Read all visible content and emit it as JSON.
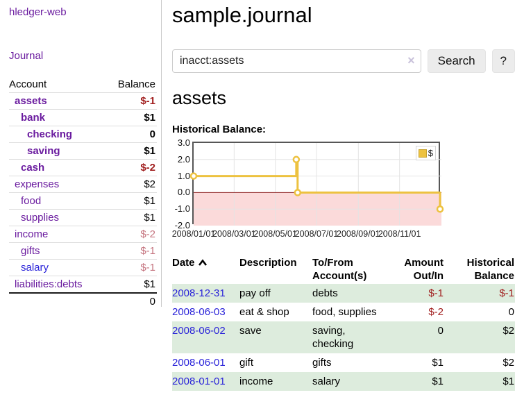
{
  "app": {
    "brand": "hledger-web",
    "title": "sample.journal"
  },
  "sidebar": {
    "journal_link": "Journal",
    "accounts": {
      "header": {
        "account": "Account",
        "balance": "Balance"
      },
      "rows": [
        {
          "name": "assets",
          "balance": "$-1",
          "depth": 1,
          "bold": true,
          "name_class": "purple",
          "balance_class": "neg"
        },
        {
          "name": "bank",
          "balance": "$1",
          "depth": 2,
          "bold": true,
          "name_class": "purple",
          "balance_class": ""
        },
        {
          "name": "checking",
          "balance": "0",
          "depth": 3,
          "bold": true,
          "name_class": "purple",
          "balance_class": ""
        },
        {
          "name": "saving",
          "balance": "$1",
          "depth": 3,
          "bold": true,
          "name_class": "purple",
          "balance_class": ""
        },
        {
          "name": "cash",
          "balance": "$-2",
          "depth": 2,
          "bold": true,
          "name_class": "purple",
          "balance_class": "neg"
        },
        {
          "name": "expenses",
          "balance": "$2",
          "depth": 1,
          "bold": false,
          "name_class": "purple",
          "balance_class": ""
        },
        {
          "name": "food",
          "balance": "$1",
          "depth": 2,
          "bold": false,
          "name_class": "purple",
          "balance_class": ""
        },
        {
          "name": "supplies",
          "balance": "$1",
          "depth": 2,
          "bold": false,
          "name_class": "purple",
          "balance_class": ""
        },
        {
          "name": "income",
          "balance": "$-2",
          "depth": 1,
          "bold": false,
          "name_class": "purple",
          "balance_class": "softneg"
        },
        {
          "name": "gifts",
          "balance": "$-1",
          "depth": 2,
          "bold": false,
          "name_class": "purple",
          "balance_class": "softneg"
        },
        {
          "name": "salary",
          "balance": "$-1",
          "depth": 2,
          "bold": false,
          "name_class": "blue",
          "balance_class": "softneg"
        },
        {
          "name": "liabilities:debts",
          "balance": "$1",
          "depth": 1,
          "bold": false,
          "name_class": "purple",
          "balance_class": ""
        }
      ],
      "total": "0"
    }
  },
  "search": {
    "value": "inacct:assets",
    "clear_icon": "×",
    "search_button": "Search",
    "help_button": "?"
  },
  "page": {
    "heading": "assets",
    "chart_title": "Historical Balance:"
  },
  "chart_data": {
    "type": "line",
    "title": "Historical Balance",
    "series": [
      {
        "name": "$",
        "color": "#edc240",
        "points": [
          {
            "date": "2008-01-01",
            "value": 1
          },
          {
            "date": "2008-06-01",
            "value": 2
          },
          {
            "date": "2008-06-03",
            "value": 0
          },
          {
            "date": "2008-12-31",
            "value": -1
          }
        ]
      }
    ],
    "x_range": [
      "2008-01-01",
      "2008-12-31"
    ],
    "x_ticks": [
      "2008/01/01",
      "2008/03/01",
      "2008/05/01",
      "2008/07/01",
      "2008/09/01",
      "2008/11/01"
    ],
    "y_ticks": [
      "3.0",
      "2.0",
      "1.0",
      "0.0",
      "-1.0",
      "-2.0"
    ],
    "ylim": [
      -2,
      3
    ],
    "legend": "$",
    "legend_position": "top-right",
    "grid": true,
    "style": {
      "negative_fill": "#fbdada",
      "zero_line": "#8b1f1f",
      "grid_line": "#e4e4e4",
      "marker_fill": "#ffffff"
    }
  },
  "register": {
    "headers": [
      {
        "label": "Date",
        "sorted": "asc"
      },
      {
        "label": "Description"
      },
      {
        "label": "To/From Account(s)"
      },
      {
        "label": "Amount Out/In",
        "align": "right"
      },
      {
        "label": "Historical Balance",
        "align": "right"
      }
    ],
    "rows": [
      {
        "date": "2008-12-31",
        "description": "pay off",
        "accounts": "debts",
        "amount": "$-1",
        "amount_class": "neg",
        "balance": "$-1",
        "balance_class": "neg"
      },
      {
        "date": "2008-06-03",
        "description": "eat & shop",
        "accounts": "food, supplies",
        "amount": "$-2",
        "amount_class": "neg",
        "balance": "0",
        "balance_class": ""
      },
      {
        "date": "2008-06-02",
        "description": "save",
        "accounts": "saving, checking",
        "amount": "0",
        "amount_class": "",
        "balance": "$2",
        "balance_class": ""
      },
      {
        "date": "2008-06-01",
        "description": "gift",
        "accounts": "gifts",
        "amount": "$1",
        "amount_class": "",
        "balance": "$2",
        "balance_class": ""
      },
      {
        "date": "2008-01-01",
        "description": "income",
        "accounts": "salary",
        "amount": "$1",
        "amount_class": "",
        "balance": "$1",
        "balance_class": ""
      }
    ]
  },
  "colors": {
    "link_purple": "#6a1b9f",
    "link_blue": "#2a23d9",
    "negative": "#a11f1f",
    "soft_negative": "#c5747f",
    "row_green": "#ddecdd",
    "series_yellow": "#edc240"
  }
}
